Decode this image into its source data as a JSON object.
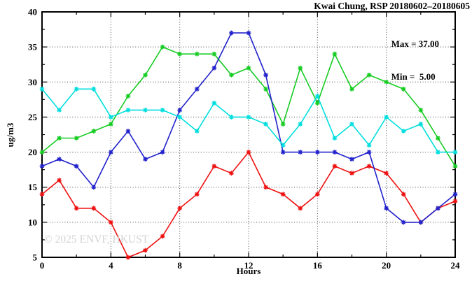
{
  "chart_data": {
    "type": "line",
    "title": "Kwai Chung, RSP 20180602–20180605",
    "xlabel": "Hours",
    "ylabel": "ug/m3",
    "xlim": [
      0,
      24
    ],
    "ylim": [
      5,
      40
    ],
    "grid": true,
    "x_major_ticks": [
      0,
      4,
      8,
      12,
      16,
      20,
      24
    ],
    "x_minor_ticks": [
      2,
      6,
      10,
      14,
      18,
      22
    ],
    "y_major_ticks": [
      5,
      10,
      15,
      20,
      25,
      30,
      35,
      40
    ],
    "y_minor_ticks": [
      7.5,
      12.5,
      17.5,
      22.5,
      27.5,
      32.5,
      37.5
    ],
    "x_gridlines": [
      4,
      8,
      12,
      16,
      20
    ],
    "y_gridlines": [
      10,
      15,
      20,
      25,
      30,
      35
    ],
    "x": [
      0,
      1,
      2,
      3,
      4,
      5,
      6,
      7,
      8,
      9,
      10,
      11,
      12,
      13,
      14,
      15,
      16,
      17,
      18,
      19,
      20,
      21,
      22,
      23,
      24
    ],
    "series": [
      {
        "name": "red-series",
        "color": "#ee1111",
        "values": [
          14,
          16,
          12,
          12,
          10,
          5,
          6,
          8,
          12,
          14,
          18,
          17,
          20,
          15,
          14,
          12,
          14,
          18,
          17,
          18,
          17,
          14,
          10,
          12,
          13
        ]
      },
      {
        "name": "green-series",
        "color": "#16cc22",
        "values": [
          20,
          22,
          22,
          23,
          24,
          28,
          31,
          35,
          34,
          34,
          34,
          31,
          32,
          29,
          24,
          32,
          27,
          34,
          29,
          31,
          30,
          29,
          26,
          22,
          18
        ]
      },
      {
        "name": "blue-series",
        "color": "#2222cc",
        "values": [
          18,
          19,
          18,
          15,
          20,
          23,
          19,
          20,
          26,
          29,
          32,
          37,
          37,
          31,
          20,
          20,
          20,
          20,
          19,
          20,
          12,
          10,
          10,
          12,
          14
        ]
      },
      {
        "name": "cyan-series",
        "color": "#00dede",
        "values": [
          29,
          26,
          29,
          29,
          25,
          26,
          26,
          26,
          25,
          23,
          27,
          25,
          25,
          24,
          21,
          24,
          28,
          22,
          24,
          21,
          25,
          23,
          24,
          20,
          20
        ]
      }
    ],
    "annotations": {
      "max_label": "Max = 37.00",
      "min_label": "Min =  5.00"
    },
    "watermark": "© 2025 ENVF, HKUST",
    "legend_position": "top-right-inside",
    "frame_color": "#000000",
    "grid_color": "#444444"
  }
}
